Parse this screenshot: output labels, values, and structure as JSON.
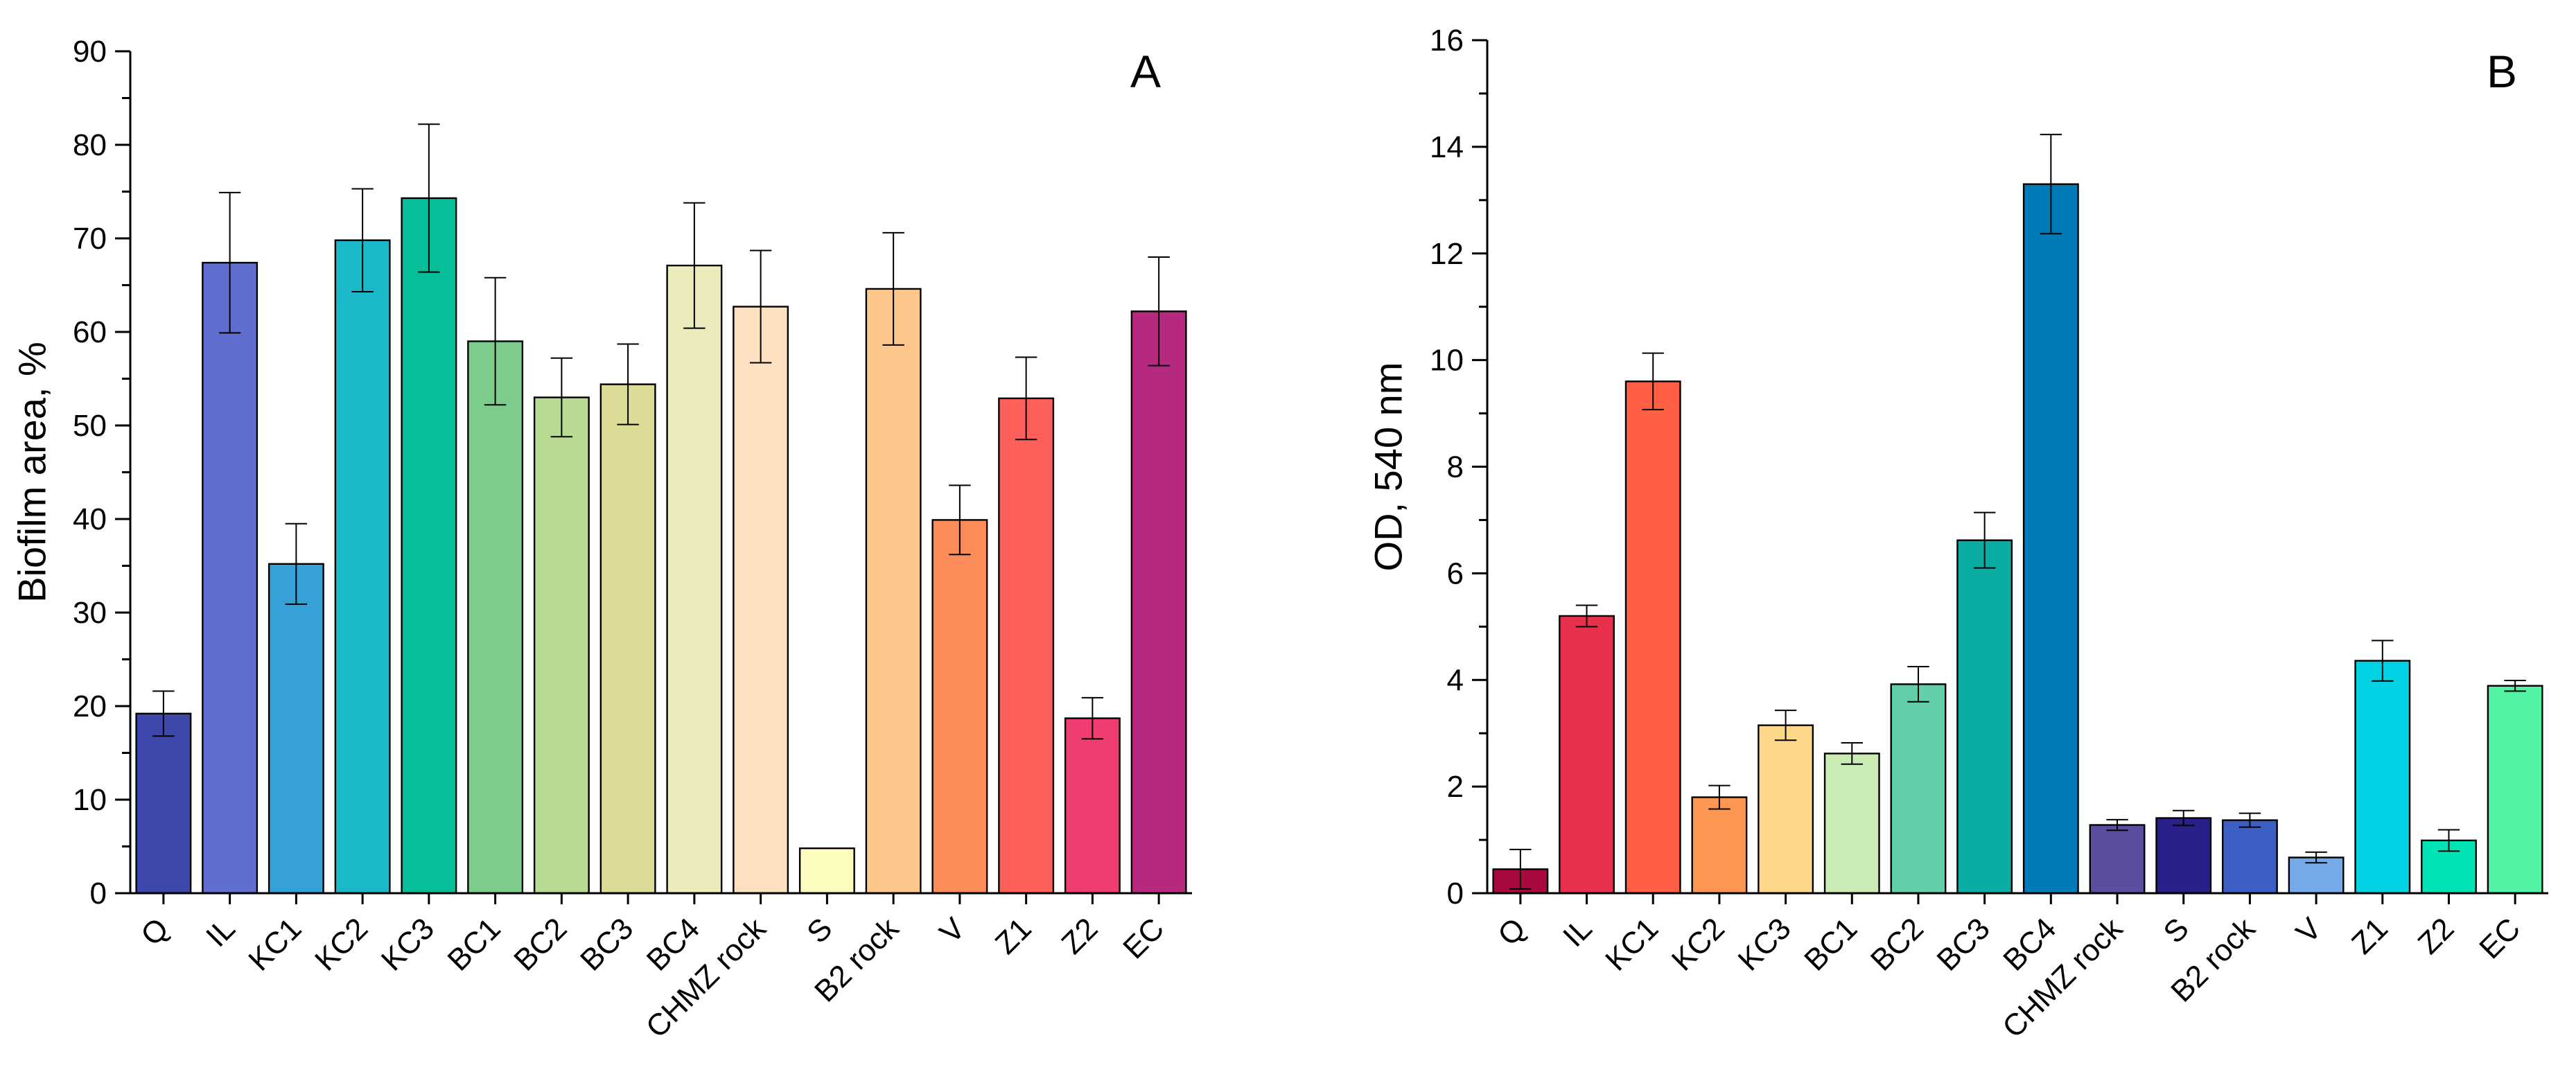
{
  "chart_data": [
    {
      "type": "bar",
      "panel_label": "A",
      "title": "",
      "xlabel": "",
      "ylabel": "Biofilm area, %",
      "ylim": [
        0,
        90
      ],
      "yticks": [
        0,
        10,
        20,
        30,
        40,
        50,
        60,
        70,
        80,
        90
      ],
      "grid": false,
      "categories": [
        "Q",
        "IL",
        "KC1",
        "KC2",
        "KC3",
        "BC1",
        "BC2",
        "BC3",
        "BC4",
        "CHMZ rock",
        "S",
        "B2 rock",
        "V",
        "Z1",
        "Z2",
        "EC"
      ],
      "values": [
        19.2,
        67.4,
        35.2,
        69.8,
        74.3,
        59.0,
        53.0,
        54.4,
        67.1,
        62.7,
        4.8,
        64.6,
        39.9,
        52.9,
        18.7,
        62.2
      ],
      "errors": [
        2.4,
        7.5,
        4.3,
        5.5,
        7.9,
        6.8,
        4.2,
        4.3,
        6.7,
        6.0,
        0.0,
        6.0,
        3.7,
        4.4,
        2.2,
        5.8
      ],
      "colors": [
        "#3e47ab",
        "#5f6ecf",
        "#35a1d6",
        "#1bb8c9",
        "#06bf98",
        "#7ccd8c",
        "#b9da93",
        "#dcdc96",
        "#ecebbc",
        "#fde0c0",
        "#fdfdc0",
        "#fdc78c",
        "#fc8c59",
        "#fd5f5a",
        "#ee3d6e",
        "#b52a7f"
      ]
    },
    {
      "type": "bar",
      "panel_label": "B",
      "title": "",
      "xlabel": "",
      "ylabel": "OD, 540 nm",
      "ylim": [
        0,
        16
      ],
      "yticks": [
        0,
        2,
        4,
        6,
        8,
        10,
        12,
        14,
        16
      ],
      "grid": false,
      "categories": [
        "Q",
        "IL",
        "KC1",
        "KC2",
        "KC3",
        "BC1",
        "BC2",
        "BC3",
        "BC4",
        "CHMZ rock",
        "S",
        "B2 rock",
        "V",
        "Z1",
        "Z2",
        "EC"
      ],
      "values": [
        0.45,
        5.2,
        9.6,
        1.8,
        3.15,
        2.62,
        3.92,
        6.62,
        13.3,
        1.28,
        1.41,
        1.37,
        0.67,
        4.36,
        0.99,
        3.89
      ],
      "errors": [
        0.37,
        0.2,
        0.53,
        0.22,
        0.28,
        0.2,
        0.33,
        0.52,
        0.93,
        0.1,
        0.14,
        0.13,
        0.1,
        0.38,
        0.2,
        0.1
      ],
      "colors": [
        "#a8093e",
        "#e8304c",
        "#ff5f44",
        "#fd9650",
        "#fdd88b",
        "#cbebb4",
        "#63ceaa",
        "#0aaca4",
        "#007bb8",
        "#5c4e9e",
        "#2a2089",
        "#3c5ec5",
        "#74aaea",
        "#00d1e3",
        "#00e3b5",
        "#53f3a6"
      ]
    }
  ]
}
